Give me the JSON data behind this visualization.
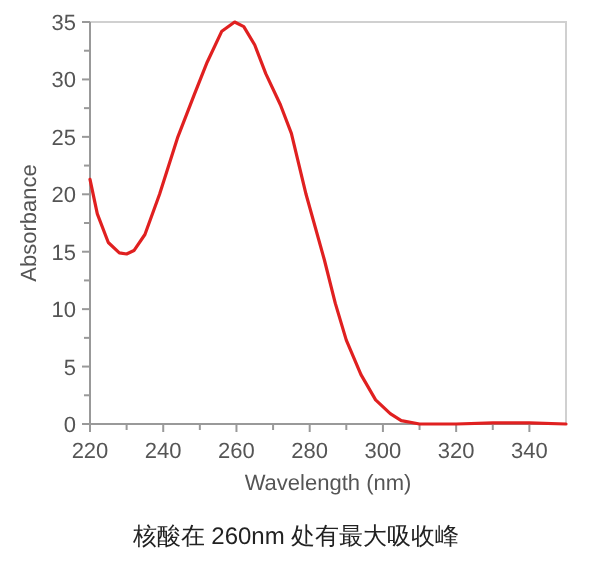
{
  "chart_data": {
    "type": "line",
    "xlabel": "Wavelength (nm)",
    "ylabel": "Absorbance",
    "annotations": [
      "核酸在 260nm 处有最大吸收峰"
    ],
    "xlim": [
      220,
      350
    ],
    "ylim": [
      0,
      35
    ],
    "xticks": [
      220,
      {
        "value": 230,
        "label": null
      },
      240,
      {
        "value": 250,
        "label": null
      },
      260,
      {
        "value": 270,
        "label": null
      },
      280,
      {
        "value": 290,
        "label": null
      },
      300,
      {
        "value": 310,
        "label": null
      },
      320,
      {
        "value": 330,
        "label": null
      },
      340
    ],
    "yticks": [
      0,
      {
        "value": 2.5,
        "label": null
      },
      5,
      {
        "value": 7.5,
        "label": null
      },
      10,
      {
        "value": 12.5,
        "label": null
      },
      15,
      {
        "value": 17.5,
        "label": null
      },
      20,
      {
        "value": 22.5,
        "label": null
      },
      25,
      {
        "value": 27.5,
        "label": null
      },
      30,
      {
        "value": 32.5,
        "label": null
      },
      35
    ],
    "series": [
      {
        "color": "#e02020",
        "x": [
          220,
          222,
          225,
          228,
          230,
          232,
          235,
          239,
          244,
          248.5,
          252,
          256,
          259.5,
          262,
          265,
          268,
          272,
          275,
          279,
          284,
          287,
          290,
          294,
          298,
          302,
          305,
          310,
          320,
          330,
          340,
          350
        ],
        "values": [
          21.3,
          18.3,
          15.8,
          14.9,
          14.8,
          15.1,
          16.5,
          20,
          25,
          28.7,
          31.5,
          34.2,
          35,
          34.6,
          33,
          30.5,
          27.8,
          25.3,
          20,
          14.3,
          10.5,
          7.3,
          4.3,
          2.1,
          0.9,
          0.3,
          0,
          0,
          0.1,
          0.1,
          0
        ]
      }
    ]
  }
}
